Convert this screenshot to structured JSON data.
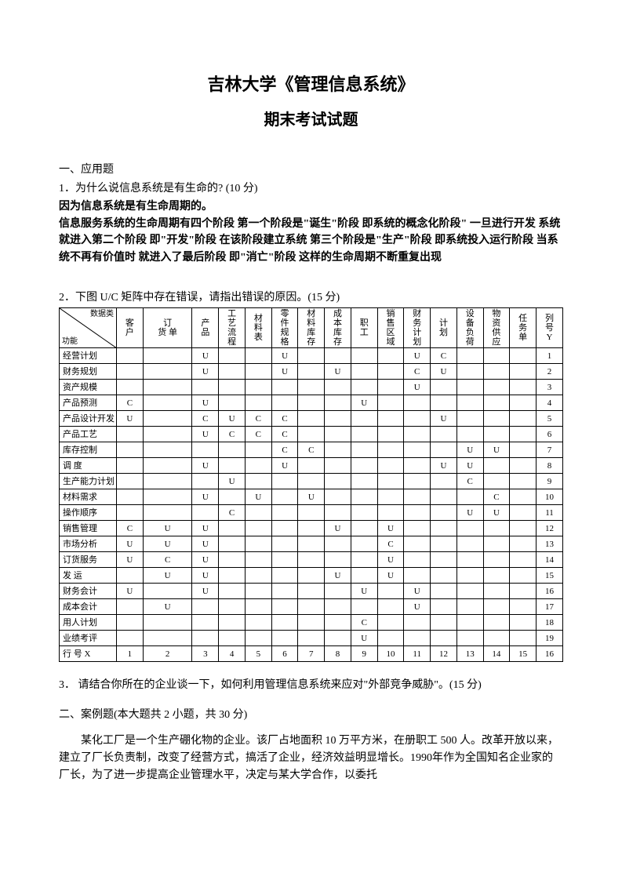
{
  "header": {
    "title": "吉林大学《管理信息系统》",
    "subtitle": "期末考试试题"
  },
  "section1": {
    "heading": "一、应用题",
    "q1": {
      "text": "1．为什么说信息系统是有生命的? (10 分)",
      "answer_bold": "因为信息系统是有生命周期的。\n信息服务系统的生命周期有四个阶段 第一个阶段是\"诞生\"阶段 即系统的概念化阶段\" 一旦进行开发 系统就进入第二个阶段 即\"开发\"阶段 在该阶段建立系统 第三个阶段是\"生产\"阶段 即系统投入运行阶段 当系统不再有价值时 就进入了最后阶段 即\"消亡\"阶段 这样的生命周期不断重复出现"
    },
    "q2": {
      "text": "2．下图 U/C 矩阵中存在错误，请指出错误的原因。(15 分)"
    },
    "q3": {
      "text": "3． 请结合你所在的企业谈一下，如何利用管理信息系统来应对\"外部竞争威胁\"。(15 分)"
    }
  },
  "uc_matrix": {
    "diag_top": "数据类",
    "diag_bot": "功能",
    "col_headers": [
      "客\n户",
      "订\n货 单",
      "产\n品",
      "工\n艺\n流\n程",
      "材\n料\n表",
      "零\n件\n规\n格",
      "材\n料\n库\n存",
      "成\n本\n库\n存",
      "职\n工",
      "销\n售\n区\n域",
      "财\n务\n计\n划",
      "计\n划",
      "设\n备\n负\n荷",
      "物\n资\n供\n应",
      "任\n务\n单",
      "列\n号\nY"
    ],
    "rows": [
      {
        "label": "经营计划",
        "cells": [
          "",
          "",
          "U",
          "",
          "",
          "U",
          "",
          "",
          "",
          "",
          "U",
          "C",
          "",
          "",
          "",
          "1"
        ]
      },
      {
        "label": "财务规划",
        "cells": [
          "",
          "",
          "U",
          "",
          "",
          "U",
          "",
          "U",
          "",
          "",
          "C",
          "U",
          "",
          "",
          "",
          "2"
        ]
      },
      {
        "label": "资产规模",
        "cells": [
          "",
          "",
          "",
          "",
          "",
          "",
          "",
          "",
          "",
          "",
          "U",
          "",
          "",
          "",
          "",
          "3"
        ]
      },
      {
        "label": "产品预测",
        "cells": [
          "C",
          "",
          "U",
          "",
          "",
          "",
          "",
          "",
          "U",
          "",
          "",
          "",
          "",
          "",
          "",
          "4"
        ]
      },
      {
        "label": "产品设计开发",
        "cells": [
          "U",
          "",
          "C",
          "U",
          "C",
          "C",
          "",
          "",
          "",
          "",
          "",
          "U",
          "",
          "",
          "",
          "5"
        ]
      },
      {
        "label": "产品工艺",
        "cells": [
          "",
          "",
          "U",
          "C",
          "C",
          "C",
          "",
          "",
          "",
          "",
          "",
          "",
          "",
          "",
          "",
          "6"
        ]
      },
      {
        "label": "库存控制",
        "cells": [
          "",
          "",
          "",
          "",
          "",
          "C",
          "C",
          "",
          "",
          "",
          "",
          "",
          "U",
          "U",
          "",
          "7"
        ]
      },
      {
        "label": "调    度",
        "cells": [
          "",
          "",
          "U",
          "",
          "",
          "U",
          "",
          "",
          "",
          "",
          "",
          "U",
          "U",
          "",
          "",
          "8"
        ]
      },
      {
        "label": "生产能力计划",
        "cells": [
          "",
          "",
          "",
          "U",
          "",
          "",
          "",
          "",
          "",
          "",
          "",
          "",
          "C",
          "",
          "",
          "9"
        ]
      },
      {
        "label": "材料需求",
        "cells": [
          "",
          "",
          "U",
          "",
          "U",
          "",
          "U",
          "",
          "",
          "",
          "",
          "",
          "",
          "C",
          "",
          "10"
        ]
      },
      {
        "label": "操作顺序",
        "cells": [
          "",
          "",
          "",
          "C",
          "",
          "",
          "",
          "",
          "",
          "",
          "",
          "",
          "U",
          "U",
          "",
          "11"
        ]
      },
      {
        "label": "销售管理",
        "cells": [
          "C",
          "U",
          "U",
          "",
          "",
          "",
          "",
          "U",
          "",
          "U",
          "",
          "",
          "",
          "",
          "",
          "12"
        ]
      },
      {
        "label": "市场分析",
        "cells": [
          "U",
          "U",
          "U",
          "",
          "",
          "",
          "",
          "",
          "",
          "C",
          "",
          "",
          "",
          "",
          "",
          "13"
        ]
      },
      {
        "label": "订货服务",
        "cells": [
          "U",
          "C",
          "U",
          "",
          "",
          "",
          "",
          "",
          "",
          "U",
          "",
          "",
          "",
          "",
          "",
          "14"
        ]
      },
      {
        "label": "发    运",
        "cells": [
          "",
          "U",
          "U",
          "",
          "",
          "",
          "",
          "U",
          "",
          "U",
          "",
          "",
          "",
          "",
          "",
          "15"
        ]
      },
      {
        "label": "财务会计",
        "cells": [
          "U",
          "",
          "U",
          "",
          "",
          "",
          "",
          "",
          "U",
          "",
          "U",
          "",
          "",
          "",
          "",
          "16"
        ]
      },
      {
        "label": "成本会计",
        "cells": [
          "",
          "U",
          "",
          "",
          "",
          "",
          "",
          "",
          "",
          "",
          "U",
          "",
          "",
          "",
          "",
          "17"
        ]
      },
      {
        "label": "用人计划",
        "cells": [
          "",
          "",
          "",
          "",
          "",
          "",
          "",
          "",
          "C",
          "",
          "",
          "",
          "",
          "",
          "",
          "18"
        ]
      },
      {
        "label": "业绩考评",
        "cells": [
          "",
          "",
          "",
          "",
          "",
          "",
          "",
          "",
          "U",
          "",
          "",
          "",
          "",
          "",
          "",
          "19"
        ]
      }
    ],
    "footer": {
      "label": "行 号 X",
      "cells": [
        "1",
        "2",
        "3",
        "4",
        "5",
        "6",
        "7",
        "8",
        "9",
        "10",
        "11",
        "12",
        "13",
        "14",
        "15",
        "16"
      ]
    }
  },
  "section2": {
    "heading": "二、案例题(本大题共 2 小题，共 30 分)",
    "case_para": "某化工厂是一个生产硼化物的企业。该厂占地面积 10 万平方米，在册职工 500 人。改革开放以来，建立了厂长负责制，改变了经营方式，搞活了企业，经济效益明显增长。1990年作为全国知名企业家的厂长，为了进一步提高企业管理水平，决定与某大学合作，以委托"
  }
}
